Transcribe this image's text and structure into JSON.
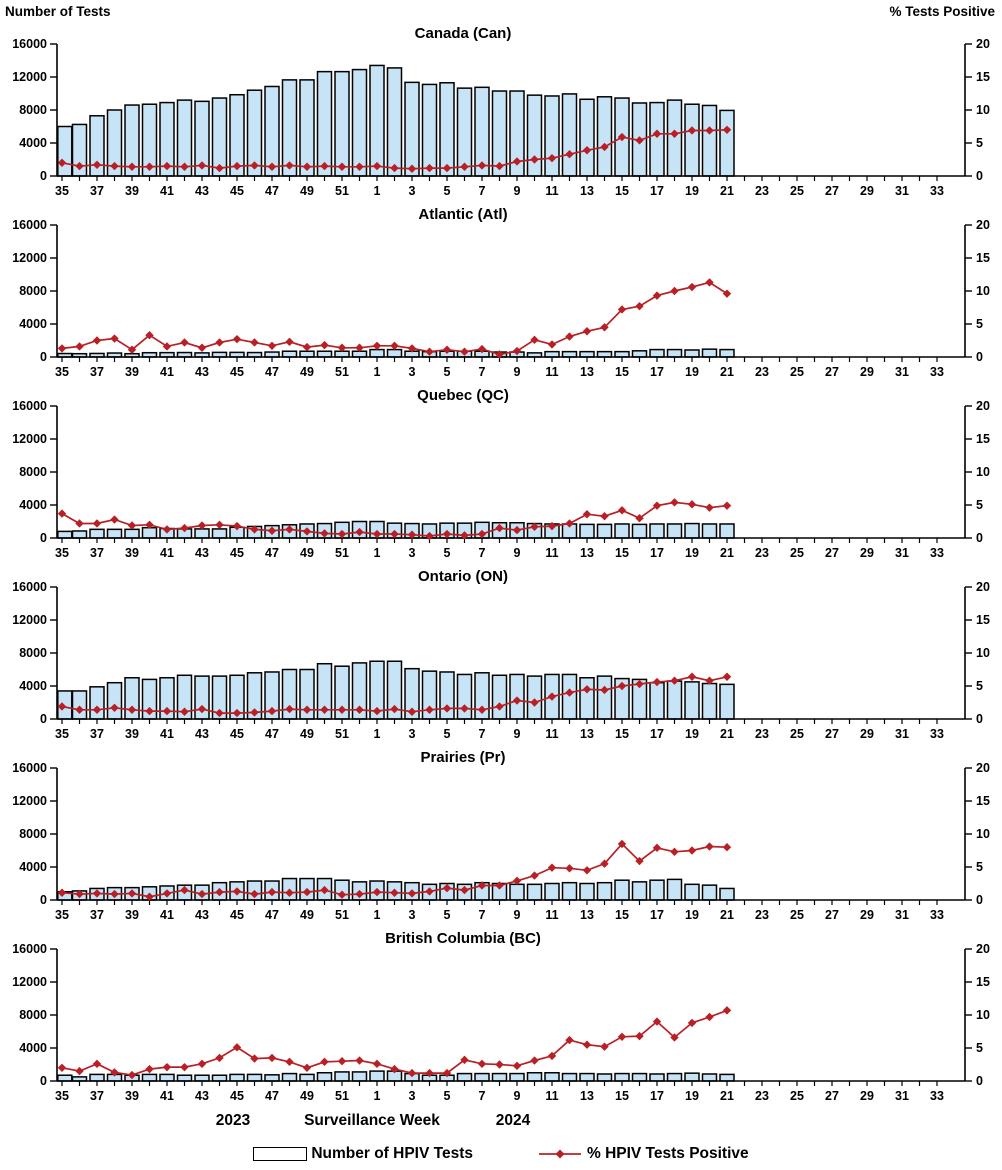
{
  "header": {
    "left_axis_label": "Number of Tests",
    "right_axis_label": "%  Tests Positive"
  },
  "footer": {
    "year_left": "2023",
    "axis_title": "Surveillance Week",
    "year_right": "2024",
    "legend_bar_label": "Number of HPIV Tests",
    "legend_line_label": "% HPIV Tests Positive"
  },
  "colors": {
    "bar_fill": "#C7E3F6",
    "bar_border": "#000000",
    "line": "#B92025",
    "text": "#000000"
  },
  "chart_data": {
    "type": "bar",
    "subtype": "combo-bar-line-small-multiples",
    "x_label": "Surveillance Week",
    "x_tick_weeks_all": [
      35,
      36,
      37,
      38,
      39,
      40,
      41,
      42,
      43,
      44,
      45,
      46,
      47,
      48,
      49,
      50,
      51,
      52,
      1,
      2,
      3,
      4,
      5,
      6,
      7,
      8,
      9,
      10,
      11,
      12,
      13,
      14,
      15,
      16,
      17,
      18,
      19,
      20,
      21,
      22,
      23,
      24,
      25,
      26,
      27,
      28,
      29,
      30,
      31,
      32,
      33
    ],
    "x_weeks_with_data": [
      35,
      36,
      37,
      38,
      39,
      40,
      41,
      42,
      43,
      44,
      45,
      46,
      47,
      48,
      49,
      50,
      51,
      52,
      1,
      2,
      3,
      4,
      5,
      6,
      7,
      8,
      9,
      10,
      11,
      12,
      13,
      14,
      15,
      16,
      17,
      18,
      19,
      20,
      21
    ],
    "left_axis": {
      "label": "Number of Tests",
      "ticks": [
        0,
        4000,
        8000,
        12000,
        16000
      ],
      "max": 16000
    },
    "right_axis": {
      "label": "% Tests Positive",
      "ticks": [
        0,
        5,
        10,
        15,
        20
      ],
      "max": 20
    },
    "legend_position": "bottom-center",
    "grid": false,
    "panels": [
      {
        "key": "canada",
        "region": "Canada (Can)",
        "series": [
          {
            "name": "Number of HPIV Tests",
            "type": "bar",
            "axis": "left",
            "values": [
              6000,
              6250,
              7300,
              8000,
              8600,
              8700,
              8900,
              9200,
              9050,
              9450,
              9850,
              10400,
              10850,
              11650,
              11650,
              12650,
              12650,
              12900,
              13400,
              13100,
              11350,
              11100,
              11300,
              10650,
              10750,
              10300,
              10300,
              9800,
              9700,
              9950,
              9300,
              9600,
              9450,
              8850,
              8900,
              9200,
              8700,
              8550,
              7950
            ]
          },
          {
            "name": "% HPIV Tests Positive",
            "type": "line",
            "axis": "right",
            "values": [
              2.0,
              1.5,
              1.7,
              1.5,
              1.4,
              1.4,
              1.5,
              1.4,
              1.6,
              1.2,
              1.5,
              1.6,
              1.4,
              1.6,
              1.4,
              1.5,
              1.4,
              1.4,
              1.5,
              1.2,
              1.1,
              1.2,
              1.2,
              1.4,
              1.6,
              1.5,
              2.2,
              2.5,
              2.7,
              3.3,
              3.9,
              4.4,
              5.9,
              5.4,
              6.4,
              6.4,
              6.9,
              6.9,
              7.0
            ]
          }
        ]
      },
      {
        "key": "atlantic",
        "region": "Atlantic (Atl)",
        "series": [
          {
            "name": "Number of HPIV Tests",
            "type": "bar",
            "axis": "left",
            "values": [
              420,
              400,
              430,
              480,
              400,
              520,
              530,
              540,
              500,
              560,
              560,
              540,
              600,
              700,
              700,
              700,
              700,
              700,
              900,
              900,
              700,
              650,
              700,
              700,
              700,
              600,
              600,
              500,
              650,
              650,
              650,
              650,
              650,
              750,
              900,
              900,
              850,
              950,
              900
            ]
          },
          {
            "name": "% HPIV Tests Positive",
            "type": "line",
            "axis": "right",
            "values": [
              1.3,
              1.6,
              2.5,
              2.8,
              1.1,
              3.3,
              1.6,
              2.2,
              1.4,
              2.2,
              2.7,
              2.2,
              1.7,
              2.3,
              1.5,
              1.8,
              1.4,
              1.4,
              1.7,
              1.7,
              1.3,
              0.8,
              1.1,
              0.8,
              1.2,
              0.4,
              0.9,
              2.6,
              1.9,
              3.1,
              3.9,
              4.5,
              7.2,
              7.7,
              9.3,
              10.0,
              10.6,
              11.3,
              9.6
            ]
          }
        ]
      },
      {
        "key": "quebec",
        "region": "Quebec (QC)",
        "series": [
          {
            "name": "Number of HPIV Tests",
            "type": "bar",
            "axis": "left",
            "values": [
              800,
              850,
              1050,
              1050,
              1050,
              1250,
              1150,
              1100,
              1100,
              1100,
              1300,
              1400,
              1500,
              1600,
              1700,
              1750,
              1900,
              2000,
              2000,
              1800,
              1750,
              1700,
              1800,
              1800,
              1900,
              1850,
              1850,
              1750,
              1700,
              1700,
              1650,
              1650,
              1700,
              1650,
              1700,
              1700,
              1750,
              1700,
              1700
            ]
          },
          {
            "name": "% HPIV Tests Positive",
            "type": "line",
            "axis": "right",
            "values": [
              3.7,
              2.2,
              2.2,
              2.8,
              1.9,
              2.0,
              1.3,
              1.5,
              1.9,
              2.0,
              1.8,
              1.3,
              1.1,
              1.3,
              1.0,
              0.7,
              0.6,
              0.9,
              0.6,
              0.6,
              0.5,
              0.3,
              0.6,
              0.4,
              0.6,
              1.5,
              1.2,
              1.7,
              1.8,
              2.2,
              3.6,
              3.3,
              4.2,
              3.0,
              4.9,
              5.4,
              5.1,
              4.6,
              4.9
            ]
          }
        ]
      },
      {
        "key": "ontario",
        "region": "Ontario (ON)",
        "series": [
          {
            "name": "Number of HPIV Tests",
            "type": "bar",
            "axis": "left",
            "values": [
              3400,
              3400,
              3900,
              4400,
              5000,
              4800,
              5000,
              5300,
              5200,
              5200,
              5300,
              5600,
              5700,
              6000,
              6000,
              6700,
              6400,
              6800,
              7000,
              7000,
              6100,
              5800,
              5700,
              5400,
              5600,
              5300,
              5400,
              5200,
              5400,
              5400,
              5000,
              5200,
              4900,
              4800,
              4400,
              4600,
              4500,
              4300,
              4200
            ]
          },
          {
            "name": "% HPIV Tests Positive",
            "type": "line",
            "axis": "right",
            "values": [
              1.9,
              1.4,
              1.4,
              1.7,
              1.4,
              1.2,
              1.2,
              1.1,
              1.5,
              0.9,
              0.9,
              1.0,
              1.2,
              1.5,
              1.4,
              1.4,
              1.4,
              1.4,
              1.2,
              1.5,
              1.1,
              1.4,
              1.6,
              1.6,
              1.4,
              1.9,
              2.8,
              2.5,
              3.4,
              4.0,
              4.5,
              4.4,
              5.0,
              5.3,
              5.6,
              5.8,
              6.4,
              5.8,
              6.4
            ]
          }
        ]
      },
      {
        "key": "prairies",
        "region": "Prairies (Pr)",
        "series": [
          {
            "name": "Number of HPIV Tests",
            "type": "bar",
            "axis": "left",
            "values": [
              1000,
              1100,
              1400,
              1500,
              1500,
              1600,
              1700,
              1800,
              1800,
              2100,
              2200,
              2300,
              2300,
              2600,
              2600,
              2600,
              2400,
              2200,
              2300,
              2200,
              2100,
              1900,
              2000,
              1900,
              2100,
              2000,
              1900,
              1900,
              2000,
              2100,
              2000,
              2100,
              2400,
              2200,
              2400,
              2500,
              1900,
              1800,
              1400
            ]
          },
          {
            "name": "% HPIV Tests Positive",
            "type": "line",
            "axis": "right",
            "values": [
              1.1,
              0.9,
              1.0,
              0.9,
              1.0,
              0.5,
              1.0,
              1.5,
              0.9,
              1.2,
              1.3,
              0.9,
              1.2,
              1.1,
              1.2,
              1.5,
              0.8,
              0.9,
              1.2,
              1.1,
              1.0,
              1.3,
              1.8,
              1.5,
              2.2,
              2.2,
              2.9,
              3.7,
              4.9,
              4.8,
              4.5,
              5.5,
              8.5,
              5.9,
              7.9,
              7.3,
              7.5,
              8.1,
              8.0
            ]
          }
        ]
      },
      {
        "key": "bc",
        "region": "British Columbia (BC)",
        "series": [
          {
            "name": "Number of HPIV Tests",
            "type": "bar",
            "axis": "left",
            "values": [
              700,
              500,
              800,
              800,
              700,
              800,
              800,
              700,
              700,
              700,
              800,
              800,
              750,
              900,
              800,
              1000,
              1100,
              1100,
              1200,
              1200,
              900,
              700,
              700,
              900,
              900,
              900,
              900,
              1000,
              1000,
              900,
              900,
              850,
              900,
              900,
              850,
              900,
              950,
              850,
              800
            ]
          },
          {
            "name": "% HPIV Tests Positive",
            "type": "line",
            "axis": "right",
            "values": [
              2.0,
              1.5,
              2.6,
              1.3,
              0.9,
              1.8,
              2.1,
              2.1,
              2.6,
              3.5,
              5.1,
              3.4,
              3.5,
              2.9,
              2.0,
              2.9,
              3.0,
              3.1,
              2.6,
              1.8,
              1.2,
              1.2,
              1.2,
              3.2,
              2.6,
              2.5,
              2.3,
              3.1,
              3.8,
              6.2,
              5.5,
              5.2,
              6.7,
              6.8,
              9.0,
              6.6,
              8.8,
              9.7,
              10.7
            ]
          }
        ]
      }
    ]
  }
}
